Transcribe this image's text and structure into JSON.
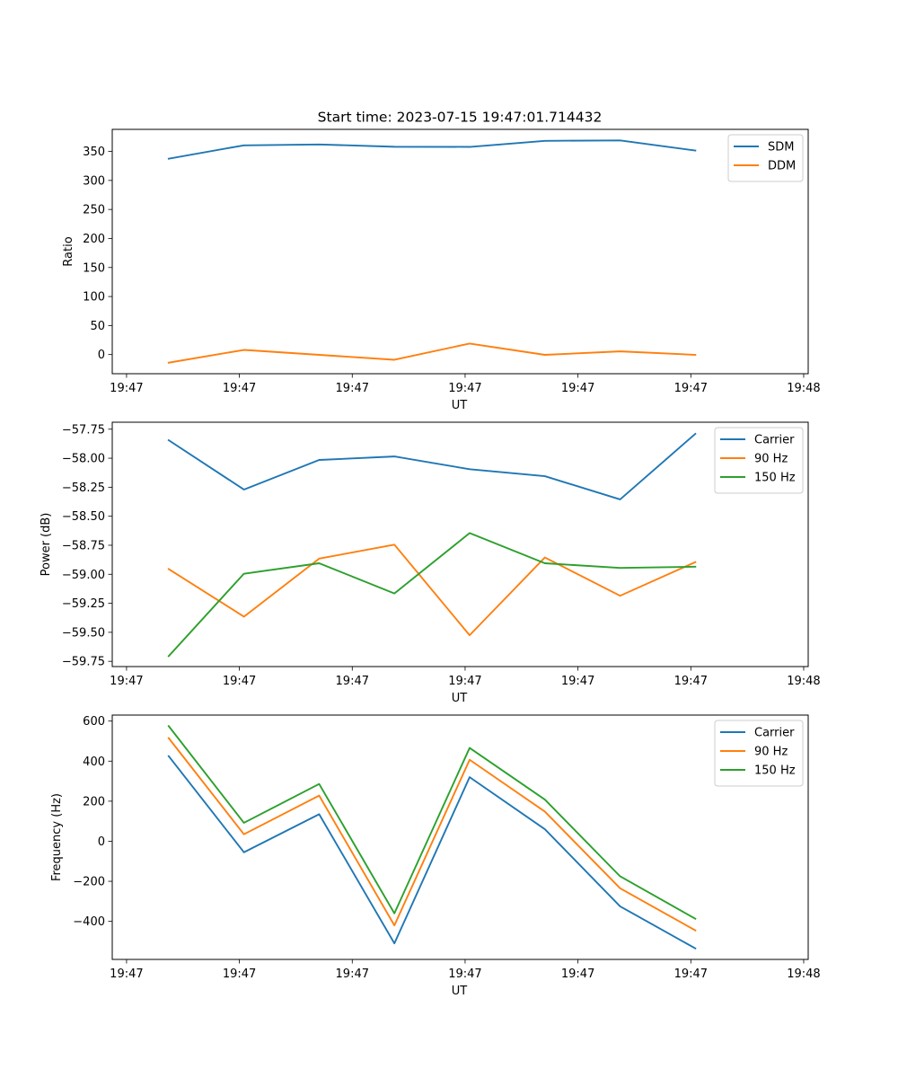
{
  "title": "Start time: 2023-07-15 19:47:01.714432",
  "chart_data": [
    {
      "type": "line",
      "xlabel": "UT",
      "ylabel": "Ratio",
      "x_ticks": [
        "19:47",
        "19:47",
        "19:47",
        "19:47",
        "19:47",
        "19:47",
        "19:48"
      ],
      "y_ticks": [
        "0",
        "50",
        "100",
        "150",
        "200",
        "250",
        "300",
        "350"
      ],
      "y_tick_values": [
        0,
        50,
        100,
        150,
        200,
        250,
        300,
        350
      ],
      "ylim": [
        -33,
        388
      ],
      "xlim": [
        -0.75,
        8.5
      ],
      "x_tick_positions": [
        -0.56,
        0.94,
        2.44,
        3.94,
        5.44,
        6.94,
        8.44
      ],
      "x": [
        0,
        1,
        2,
        3,
        4,
        5,
        6,
        7
      ],
      "legend_position": "upper right",
      "series": [
        {
          "name": "SDM",
          "color": "#1f77b4",
          "values": [
            337.5,
            360.5,
            362,
            358,
            357.8,
            368.2,
            369,
            351.5
          ]
        },
        {
          "name": "DDM",
          "color": "#ff7f0e",
          "values": [
            -14,
            8,
            -0.5,
            -9,
            19,
            -0.5,
            5.5,
            -0.5
          ]
        }
      ]
    },
    {
      "type": "line",
      "xlabel": "UT",
      "ylabel": "Power (dB)",
      "x_ticks": [
        "19:47",
        "19:47",
        "19:47",
        "19:47",
        "19:47",
        "19:47",
        "19:48"
      ],
      "y_ticks": [
        "−59.75",
        "−59.50",
        "−59.25",
        "−59.00",
        "−58.75",
        "−58.50",
        "−58.25",
        "−58.00",
        "−57.75"
      ],
      "y_tick_values": [
        -59.75,
        -59.5,
        -59.25,
        -59.0,
        -58.75,
        -58.5,
        -58.25,
        -58.0,
        -57.75
      ],
      "ylim": [
        -59.795,
        -57.69
      ],
      "xlim": [
        -0.75,
        8.5
      ],
      "x_tick_positions": [
        -0.56,
        0.94,
        2.44,
        3.94,
        5.44,
        6.94,
        8.44
      ],
      "x": [
        0,
        1,
        2,
        3,
        4,
        5,
        6,
        7
      ],
      "legend_position": "upper right",
      "series": [
        {
          "name": "Carrier",
          "color": "#1f77b4",
          "values": [
            -57.845,
            -58.27,
            -58.015,
            -57.985,
            -58.095,
            -58.155,
            -58.355,
            -57.79
          ]
        },
        {
          "name": "90 Hz",
          "color": "#ff7f0e",
          "values": [
            -58.955,
            -59.365,
            -58.865,
            -58.745,
            -59.525,
            -58.855,
            -59.185,
            -58.895
          ]
        },
        {
          "name": "150 Hz",
          "color": "#2ca02c",
          "values": [
            -59.705,
            -58.995,
            -58.905,
            -59.165,
            -58.645,
            -58.905,
            -58.945,
            -58.935
          ]
        }
      ]
    },
    {
      "type": "line",
      "xlabel": "UT",
      "ylabel": "Frequency (Hz)",
      "x_ticks": [
        "19:47",
        "19:47",
        "19:47",
        "19:47",
        "19:47",
        "19:47",
        "19:48"
      ],
      "y_ticks": [
        "−400",
        "−200",
        "0",
        "200",
        "400",
        "600"
      ],
      "y_tick_values": [
        -400,
        -200,
        0,
        200,
        400,
        600
      ],
      "ylim": [
        -590,
        630
      ],
      "xlim": [
        -0.75,
        8.5
      ],
      "x_tick_positions": [
        -0.56,
        0.94,
        2.44,
        3.94,
        5.44,
        6.94,
        8.44
      ],
      "x": [
        0,
        1,
        2,
        3,
        4,
        5,
        6,
        7
      ],
      "legend_position": "upper right",
      "series": [
        {
          "name": "Carrier",
          "color": "#1f77b4",
          "values": [
            425,
            -55,
            135,
            -510,
            320,
            60,
            -325,
            -535
          ]
        },
        {
          "name": "90 Hz",
          "color": "#ff7f0e",
          "values": [
            515,
            35,
            228,
            -420,
            407,
            148,
            -235,
            -445
          ]
        },
        {
          "name": "150 Hz",
          "color": "#2ca02c",
          "values": [
            575,
            92,
            286,
            -360,
            466,
            208,
            -175,
            -387
          ]
        }
      ]
    }
  ]
}
